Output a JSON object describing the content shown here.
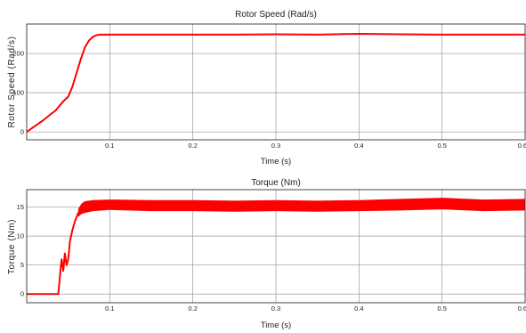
{
  "chart_data": [
    {
      "type": "line",
      "title": "Rotor Speed (Rad/s)",
      "xlabel": "Time (s)",
      "ylabel": "Rotor Speed (Rad/s)",
      "xlim": [
        0,
        0.6
      ],
      "ylim": [
        -20,
        275
      ],
      "xticks": [
        0.1,
        0.2,
        0.3,
        0.4,
        0.5,
        0.6
      ],
      "xtick_labels": [
        "0.1",
        "0.2",
        "0.3",
        "0.4",
        "0.5",
        "0.6"
      ],
      "yticks": [
        0,
        100,
        200
      ],
      "ytick_labels": [
        "0",
        "100",
        "200"
      ],
      "grid": true,
      "series_color": "#ff0000",
      "series": [
        {
          "x": [
            0,
            0.01,
            0.02,
            0.03,
            0.035,
            0.04,
            0.045,
            0.05,
            0.055,
            0.06,
            0.065,
            0.07,
            0.075,
            0.08,
            0.085,
            0.09,
            0.1,
            0.15,
            0.2,
            0.25,
            0.3,
            0.35,
            0.4,
            0.45,
            0.5,
            0.55,
            0.6
          ],
          "y": [
            0,
            15,
            30,
            47,
            55,
            68,
            80,
            90,
            115,
            150,
            185,
            215,
            233,
            243,
            247,
            248,
            248,
            248,
            248,
            248,
            249,
            248,
            250,
            249,
            248,
            248,
            248
          ]
        }
      ]
    },
    {
      "type": "line",
      "title": "Torque (Nm)",
      "xlabel": "Time (s)",
      "ylabel": "Torque (Nm)",
      "xlim": [
        0,
        0.6
      ],
      "ylim": [
        -1.5,
        18
      ],
      "xticks": [
        0.1,
        0.2,
        0.3,
        0.4,
        0.5,
        0.6
      ],
      "xtick_labels": [
        "0.1",
        "0.2",
        "0.3",
        "0.4",
        "0.5",
        "0.6"
      ],
      "yticks": [
        0,
        5,
        10,
        15
      ],
      "ytick_labels": [
        "0",
        "5",
        "10",
        "15"
      ],
      "grid": true,
      "series_color": "#ff0000",
      "series": [
        {
          "x": [
            0,
            0.038,
            0.04,
            0.042,
            0.044,
            0.046,
            0.048,
            0.05,
            0.052,
            0.055,
            0.058,
            0.062,
            0.066,
            0.07,
            0.08,
            0.1,
            0.15,
            0.2,
            0.25,
            0.3,
            0.35,
            0.4,
            0.45,
            0.5,
            0.55,
            0.6
          ],
          "y": [
            0,
            0,
            3,
            6,
            4,
            7,
            5,
            6,
            9,
            11,
            12.5,
            14,
            14.7,
            15,
            15.3,
            15.4,
            15.2,
            15.3,
            15.2,
            15.3,
            15.2,
            15.3,
            15.4,
            15.6,
            15.3,
            15.4
          ]
        }
      ],
      "band_upper": [
        0,
        0,
        0,
        0,
        0,
        0,
        0,
        0,
        0,
        0,
        0,
        14.7,
        15.6,
        16.0,
        16.2,
        16.3,
        16.2,
        16.2,
        16.1,
        16.2,
        16.1,
        16.2,
        16.4,
        16.6,
        16.3,
        16.4
      ],
      "band_lower": [
        0,
        0,
        0,
        0,
        0,
        0,
        0,
        0,
        0,
        0,
        0,
        13.3,
        13.8,
        14.0,
        14.3,
        14.5,
        14.3,
        14.3,
        14.2,
        14.3,
        14.2,
        14.3,
        14.4,
        14.6,
        14.3,
        14.4
      ]
    }
  ]
}
